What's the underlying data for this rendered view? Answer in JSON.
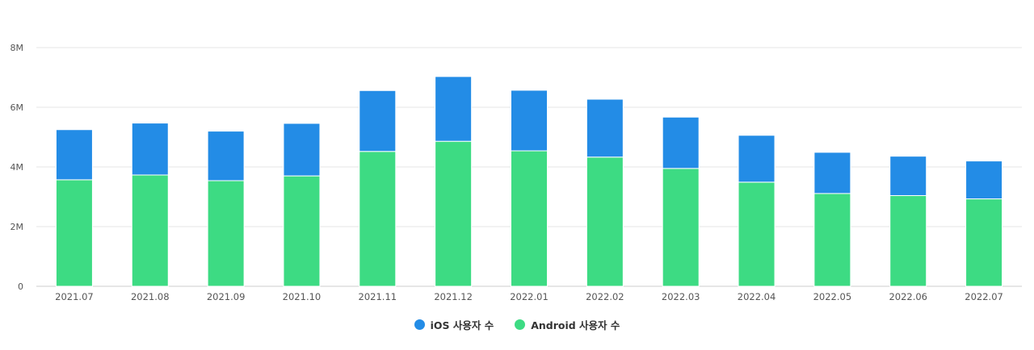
{
  "chart_data": {
    "type": "bar",
    "stacked": true,
    "categories": [
      "2021.07",
      "2021.08",
      "2021.09",
      "2021.10",
      "2021.11",
      "2021.12",
      "2022.01",
      "2022.02",
      "2022.03",
      "2022.04",
      "2022.05",
      "2022.06",
      "2022.07"
    ],
    "series": [
      {
        "name": "Android 사용자 수",
        "color": "#3ddb83",
        "values": [
          3.57,
          3.73,
          3.54,
          3.7,
          4.52,
          4.86,
          4.54,
          4.33,
          3.95,
          3.49,
          3.11,
          3.04,
          2.93
        ]
      },
      {
        "name": "iOS 사용자 수",
        "color": "#238ce6",
        "values": [
          1.68,
          1.74,
          1.66,
          1.76,
          2.04,
          2.17,
          2.03,
          1.94,
          1.72,
          1.57,
          1.38,
          1.32,
          1.27
        ]
      }
    ],
    "y_ticks": [
      "0",
      "2M",
      "4M",
      "6M",
      "8M"
    ],
    "y_unit": "M",
    "ylim": [
      0,
      8
    ],
    "grid": true,
    "legend_position": "bottom-center",
    "legend": [
      {
        "label": "iOS 사용자 수",
        "color": "#238ce6"
      },
      {
        "label": "Android 사용자 수",
        "color": "#3ddb83"
      }
    ]
  }
}
